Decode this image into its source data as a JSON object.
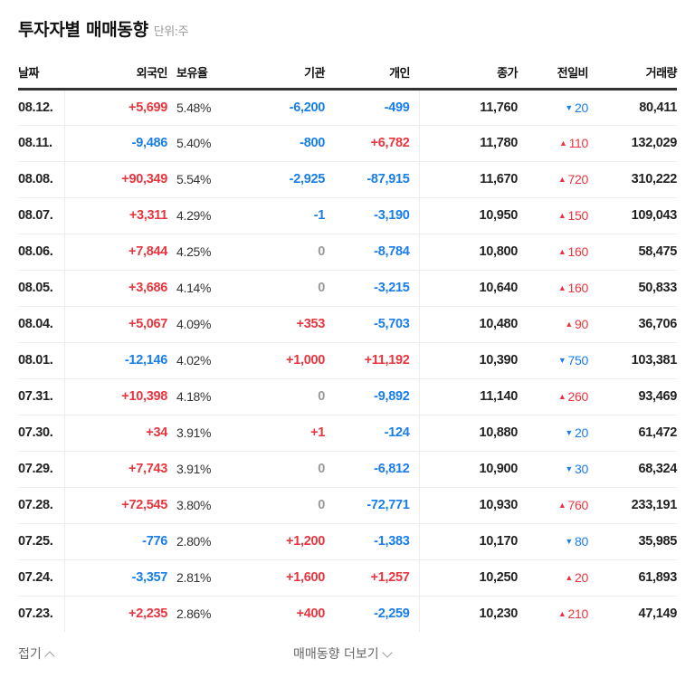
{
  "header": {
    "title": "투자자별 매매동향",
    "unit": "단위:주"
  },
  "table": {
    "columns": [
      "날짜",
      "외국인",
      "보유율",
      "기관",
      "개인",
      "종가",
      "전일비",
      "거래량"
    ],
    "rows": [
      {
        "date": "08.12.",
        "foreign": "+5,699",
        "ratio": "5.48%",
        "inst": "-6,200",
        "indiv": "-499",
        "close": "11,760",
        "chg_dir": "down",
        "chg": "20",
        "vol": "80,411"
      },
      {
        "date": "08.11.",
        "foreign": "-9,486",
        "ratio": "5.40%",
        "inst": "-800",
        "indiv": "+6,782",
        "close": "11,780",
        "chg_dir": "up",
        "chg": "110",
        "vol": "132,029"
      },
      {
        "date": "08.08.",
        "foreign": "+90,349",
        "ratio": "5.54%",
        "inst": "-2,925",
        "indiv": "-87,915",
        "close": "11,670",
        "chg_dir": "up",
        "chg": "720",
        "vol": "310,222"
      },
      {
        "date": "08.07.",
        "foreign": "+3,311",
        "ratio": "4.29%",
        "inst": "-1",
        "indiv": "-3,190",
        "close": "10,950",
        "chg_dir": "up",
        "chg": "150",
        "vol": "109,043"
      },
      {
        "date": "08.06.",
        "foreign": "+7,844",
        "ratio": "4.25%",
        "inst": "0",
        "indiv": "-8,784",
        "close": "10,800",
        "chg_dir": "up",
        "chg": "160",
        "vol": "58,475"
      },
      {
        "date": "08.05.",
        "foreign": "+3,686",
        "ratio": "4.14%",
        "inst": "0",
        "indiv": "-3,215",
        "close": "10,640",
        "chg_dir": "up",
        "chg": "160",
        "vol": "50,833"
      },
      {
        "date": "08.04.",
        "foreign": "+5,067",
        "ratio": "4.09%",
        "inst": "+353",
        "indiv": "-5,703",
        "close": "10,480",
        "chg_dir": "up",
        "chg": "90",
        "vol": "36,706"
      },
      {
        "date": "08.01.",
        "foreign": "-12,146",
        "ratio": "4.02%",
        "inst": "+1,000",
        "indiv": "+11,192",
        "close": "10,390",
        "chg_dir": "down",
        "chg": "750",
        "vol": "103,381"
      },
      {
        "date": "07.31.",
        "foreign": "+10,398",
        "ratio": "4.18%",
        "inst": "0",
        "indiv": "-9,892",
        "close": "11,140",
        "chg_dir": "up",
        "chg": "260",
        "vol": "93,469"
      },
      {
        "date": "07.30.",
        "foreign": "+34",
        "ratio": "3.91%",
        "inst": "+1",
        "indiv": "-124",
        "close": "10,880",
        "chg_dir": "down",
        "chg": "20",
        "vol": "61,472"
      },
      {
        "date": "07.29.",
        "foreign": "+7,743",
        "ratio": "3.91%",
        "inst": "0",
        "indiv": "-6,812",
        "close": "10,900",
        "chg_dir": "down",
        "chg": "30",
        "vol": "68,324"
      },
      {
        "date": "07.28.",
        "foreign": "+72,545",
        "ratio": "3.80%",
        "inst": "0",
        "indiv": "-72,771",
        "close": "10,930",
        "chg_dir": "up",
        "chg": "760",
        "vol": "233,191"
      },
      {
        "date": "07.25.",
        "foreign": "-776",
        "ratio": "2.80%",
        "inst": "+1,200",
        "indiv": "-1,383",
        "close": "10,170",
        "chg_dir": "down",
        "chg": "80",
        "vol": "35,985"
      },
      {
        "date": "07.24.",
        "foreign": "-3,357",
        "ratio": "2.81%",
        "inst": "+1,600",
        "indiv": "+1,257",
        "close": "10,250",
        "chg_dir": "up",
        "chg": "20",
        "vol": "61,893"
      },
      {
        "date": "07.23.",
        "foreign": "+2,235",
        "ratio": "2.86%",
        "inst": "+400",
        "indiv": "-2,259",
        "close": "10,230",
        "chg_dir": "up",
        "chg": "210",
        "vol": "47,149"
      }
    ]
  },
  "footer": {
    "fold_label": "접기",
    "more_label": "매매동향 더보기"
  },
  "icons": {
    "up_arrow": "▲",
    "down_arrow": "▼",
    "chevron_up": "chevron-up-icon",
    "chevron_down": "chevron-down-icon"
  },
  "colors": {
    "up": "#e8363e",
    "down": "#1a7ee8",
    "zero": "#999999",
    "text": "#222222",
    "header_rule": "#333333",
    "row_rule": "#ececec"
  }
}
